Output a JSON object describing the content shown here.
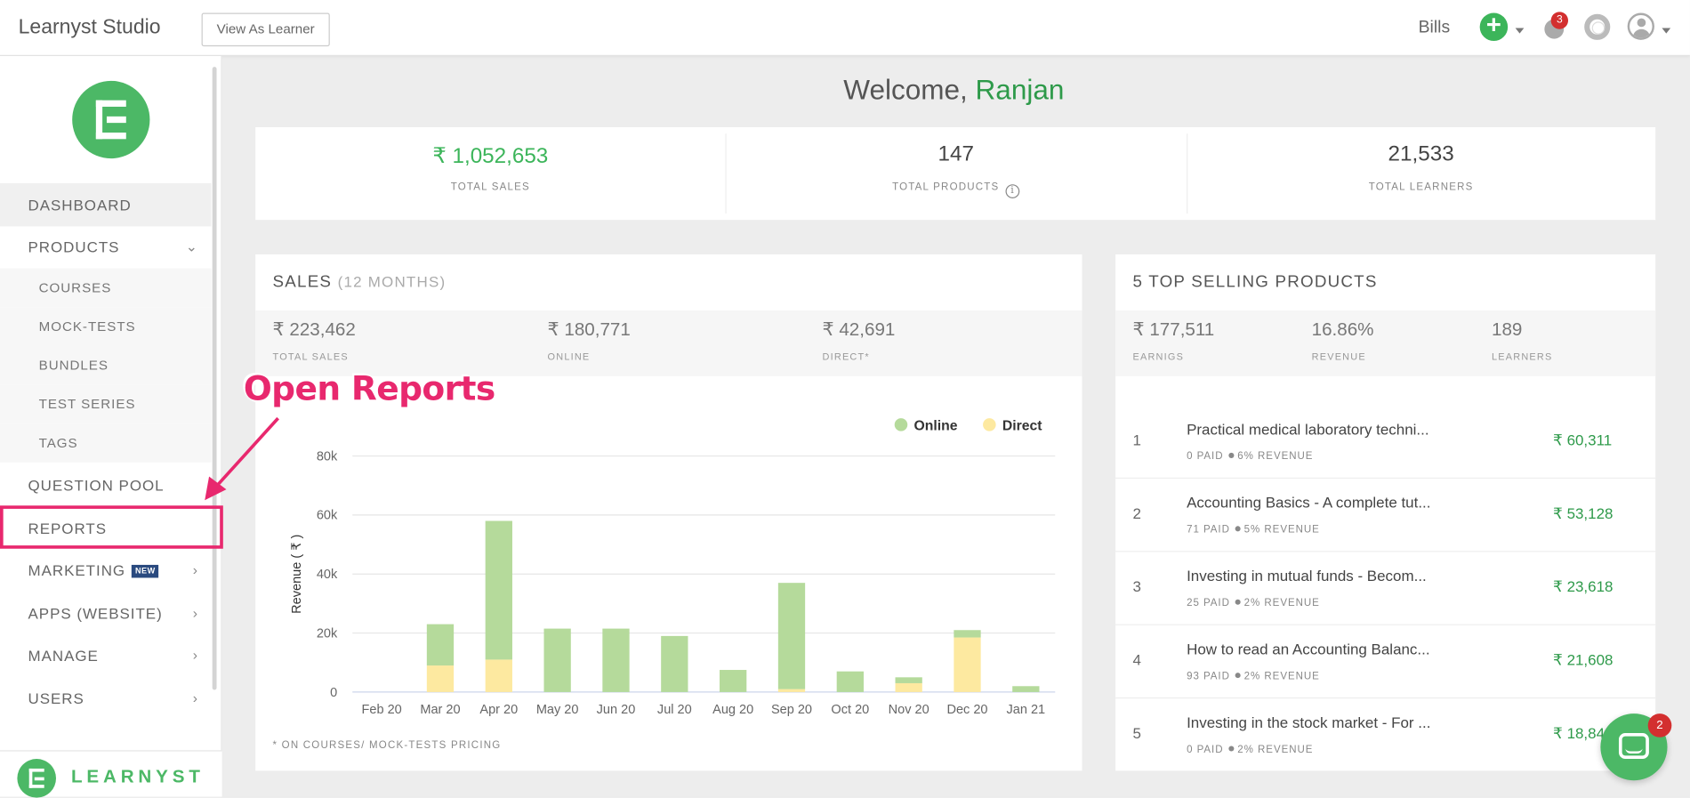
{
  "header": {
    "app_title": "Learnyst Studio",
    "view_as_learner": "View As Learner",
    "bills": "Bills",
    "notification_count": "3"
  },
  "sidebar": {
    "items": [
      {
        "label": "DASHBOARD"
      },
      {
        "label": "PRODUCTS"
      },
      {
        "label": "COURSES"
      },
      {
        "label": "MOCK-TESTS"
      },
      {
        "label": "BUNDLES"
      },
      {
        "label": "TEST SERIES"
      },
      {
        "label": "TAGS"
      },
      {
        "label": "QUESTION POOL"
      },
      {
        "label": "REPORTS"
      },
      {
        "label": "MARKETING",
        "badge": "NEW"
      },
      {
        "label": "APPS (WEBSITE)"
      },
      {
        "label": "MANAGE"
      },
      {
        "label": "USERS"
      }
    ],
    "footer_brand": "LEARNYST"
  },
  "annotation": {
    "text": "Open Reports"
  },
  "welcome": {
    "prefix": "Welcome,",
    "name": "Ranjan"
  },
  "stats": [
    {
      "value": "₹ 1,052,653",
      "label": "TOTAL SALES"
    },
    {
      "value": "147",
      "label": "TOTAL PRODUCTS"
    },
    {
      "value": "21,533",
      "label": "TOTAL LEARNERS"
    }
  ],
  "sales_card": {
    "title": "SALES",
    "subtitle": "(12 MONTHS)",
    "summary": [
      {
        "value": "₹ 223,462",
        "label": "TOTAL SALES"
      },
      {
        "value": "₹ 180,771",
        "label": "ONLINE"
      },
      {
        "value": "₹ 42,691",
        "label": "DIRECT*"
      }
    ],
    "footnote": "* ON COURSES/ MOCK-TESTS PRICING"
  },
  "top_products": {
    "title": "5 TOP SELLING PRODUCTS",
    "summary": [
      {
        "value": "₹ 177,511",
        "label": "EARNIGS"
      },
      {
        "value": "16.86%",
        "label": "REVENUE"
      },
      {
        "value": "189",
        "label": "LEARNERS"
      }
    ],
    "rows": [
      {
        "rank": "1",
        "name": "Practical medical laboratory techni...",
        "paid": "0 PAID",
        "revenue": "6% REVENUE",
        "amount": "₹ 60,311"
      },
      {
        "rank": "2",
        "name": "Accounting Basics - A complete tut...",
        "paid": "71 PAID",
        "revenue": "5% REVENUE",
        "amount": "₹ 53,128"
      },
      {
        "rank": "3",
        "name": "Investing in mutual funds - Becom...",
        "paid": "25 PAID",
        "revenue": "2% REVENUE",
        "amount": "₹ 23,618"
      },
      {
        "rank": "4",
        "name": "How to read an Accounting Balanc...",
        "paid": "93 PAID",
        "revenue": "2% REVENUE",
        "amount": "₹ 21,608"
      },
      {
        "rank": "5",
        "name": "Investing in the stock market - For ...",
        "paid": "0 PAID",
        "revenue": "2% REVENUE",
        "amount": "₹ 18,846"
      }
    ]
  },
  "chat": {
    "badge": "2"
  },
  "colors": {
    "accent_green": "#4cb866",
    "online": "#b5da9b",
    "direct": "#fde9a0",
    "annotation": "#e8286e"
  },
  "chart_data": {
    "type": "bar",
    "stacked": true,
    "categories": [
      "Feb 20",
      "Mar 20",
      "Apr 20",
      "May 20",
      "Jun 20",
      "Jul 20",
      "Aug 20",
      "Sep 20",
      "Oct 20",
      "Nov 20",
      "Dec 20",
      "Jan 21"
    ],
    "series": [
      {
        "name": "Direct",
        "color": "#fde9a0",
        "values": [
          0,
          9000,
          11000,
          0,
          0,
          0,
          0,
          1000,
          0,
          3000,
          18500,
          0
        ]
      },
      {
        "name": "Online",
        "color": "#b5da9b",
        "values": [
          0,
          14000,
          47000,
          21500,
          21500,
          19000,
          7500,
          36000,
          7000,
          2000,
          2500,
          2000
        ]
      }
    ],
    "ylabel": "Revenue ( ₹ )",
    "yticks": [
      "0",
      "20k",
      "40k",
      "60k",
      "80k"
    ],
    "ylim": [
      0,
      80000
    ],
    "legend": "top-right",
    "grid": true
  }
}
